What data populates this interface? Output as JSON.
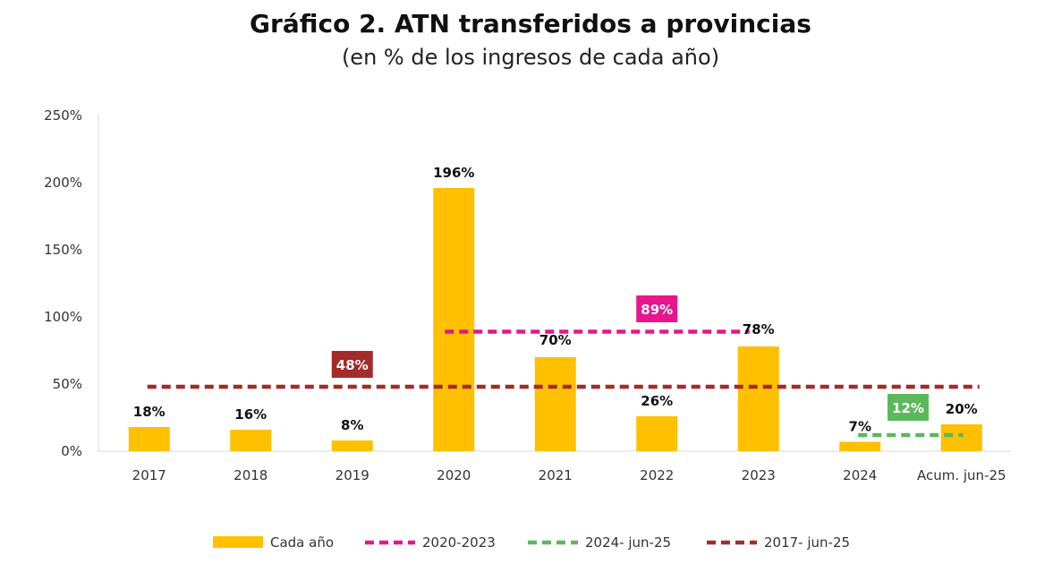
{
  "chart_data": {
    "type": "bar",
    "title": "Gráfico 2. ATN transferidos a provincias",
    "subtitle": "(en % de los ingresos de cada año)",
    "categories": [
      "2017",
      "2018",
      "2019",
      "2020",
      "2021",
      "2022",
      "2023",
      "2024",
      "Acum. jun-25"
    ],
    "series": [
      {
        "name": "Cada año",
        "type": "bar",
        "color": "#FFC000",
        "values": [
          18,
          16,
          8,
          196,
          70,
          26,
          78,
          7,
          20
        ],
        "labels": [
          "18%",
          "16%",
          "8%",
          "196%",
          "70%",
          "26%",
          "78%",
          "7%",
          "20%"
        ]
      }
    ],
    "averages": [
      {
        "name": "2020-2023",
        "value": 89,
        "label": "89%",
        "from": "2020",
        "to": "2023",
        "color": "#E6168C"
      },
      {
        "name": "2024- jun-25",
        "value": 12,
        "label": "12%",
        "from": "2024",
        "to": "Acum. jun-25",
        "color": "#5CB85C"
      },
      {
        "name": "2017- jun-25",
        "value": 48,
        "label": "48%",
        "from": "2017",
        "to": "Acum. jun-25",
        "color": "#A52A2A"
      }
    ],
    "ylim": [
      0,
      250
    ],
    "yticks": [
      "0%",
      "50%",
      "100%",
      "150%",
      "200%",
      "250%"
    ],
    "legend_position": "bottom",
    "grid": false
  }
}
